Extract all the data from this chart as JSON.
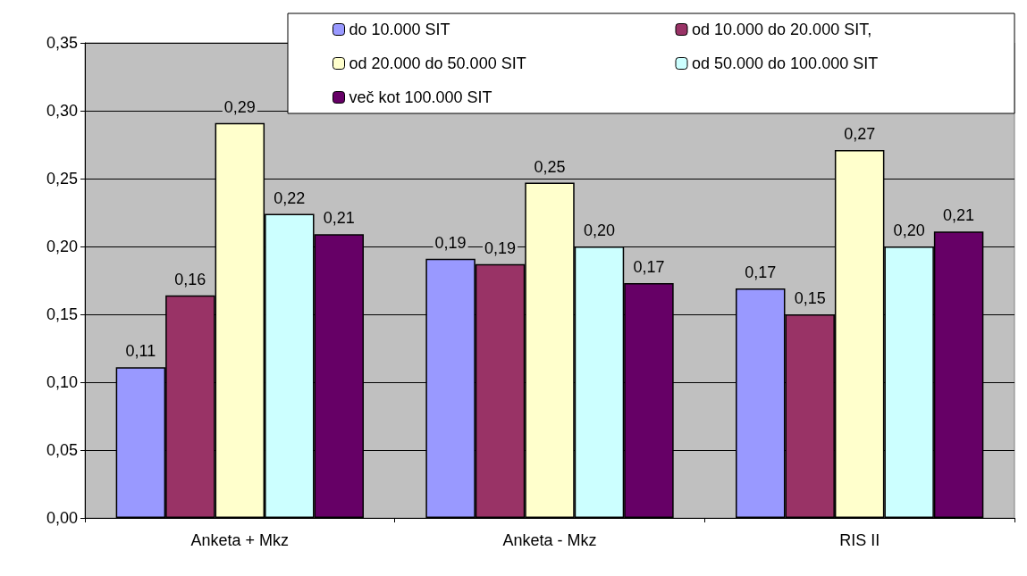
{
  "chart_data": {
    "type": "bar",
    "categories": [
      "Anketa + Mkz",
      "Anketa - Mkz",
      "RIS II"
    ],
    "series": [
      {
        "name": "do 10.000 SIT",
        "color": "#9999ff",
        "values": [
          0.111,
          0.191,
          0.169
        ],
        "value_labels": [
          "0,11",
          "0,19",
          "0,17"
        ]
      },
      {
        "name": "od 10.000 do 20.000 SIT,",
        "color": "#993366",
        "values": [
          0.164,
          0.187,
          0.15
        ],
        "value_labels": [
          "0,16",
          "0,19",
          "0,15"
        ]
      },
      {
        "name": "od 20.000 do 50.000 SIT",
        "color": "#ffffcc",
        "values": [
          0.291,
          0.247,
          0.271
        ],
        "value_labels": [
          "0,29",
          "0,25",
          "0,27"
        ]
      },
      {
        "name": "od 50.000 do 100.000 SIT",
        "color": "#ccffff",
        "values": [
          0.224,
          0.2,
          0.2
        ],
        "value_labels": [
          "0,22",
          "0,20",
          "0,20"
        ]
      },
      {
        "name": "več kot 100.000 SIT",
        "color": "#660066",
        "values": [
          0.209,
          0.173,
          0.211
        ],
        "value_labels": [
          "0,21",
          "0,17",
          "0,21"
        ]
      }
    ],
    "ylim": [
      0,
      0.35
    ],
    "yticks": [
      {
        "value": 0,
        "label": "0,00"
      },
      {
        "value": 0.05,
        "label": "0,05"
      },
      {
        "value": 0.1,
        "label": "0,10"
      },
      {
        "value": 0.15,
        "label": "0,15"
      },
      {
        "value": 0.2,
        "label": "0,20"
      },
      {
        "value": 0.25,
        "label": "0,25"
      },
      {
        "value": 0.3,
        "label": "0,30"
      },
      {
        "value": 0.35,
        "label": "0,35"
      }
    ],
    "grid": "y",
    "legend": "top right"
  }
}
